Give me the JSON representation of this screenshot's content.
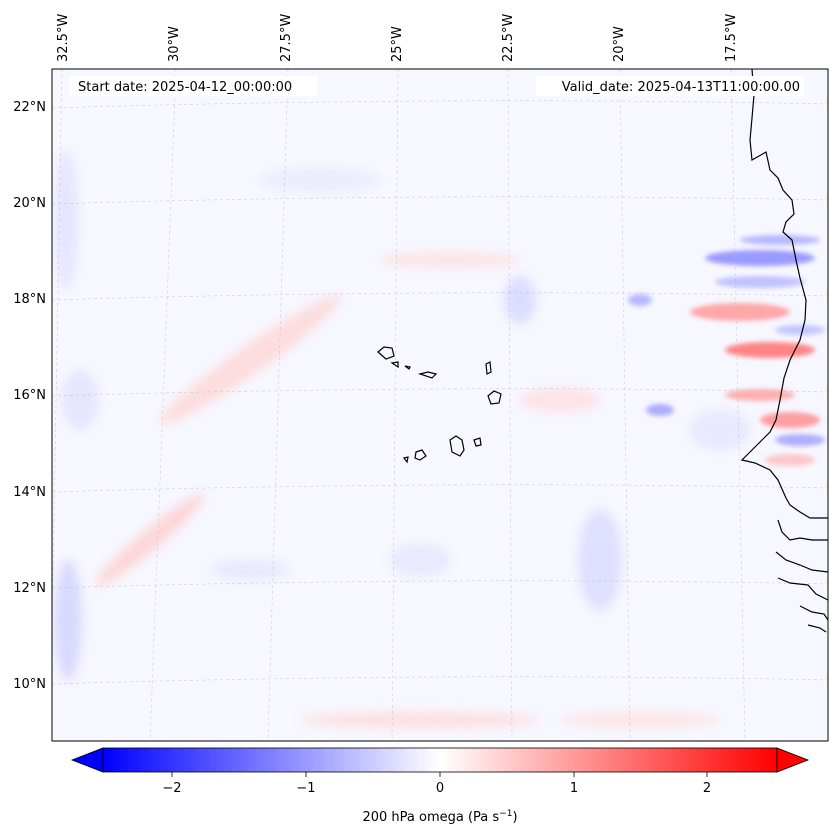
{
  "map": {
    "start_date": "Start date: 2025-04-12_00:00:00",
    "valid_date": "Valid_date: 2025-04-13T11:00:00.00",
    "lon_labels": [
      "32.5°W",
      "30°W",
      "27.5°W",
      "25°W",
      "22.5°W",
      "20°W",
      "17.5°W"
    ],
    "lat_labels": [
      "22°N",
      "20°N",
      "18°N",
      "16°N",
      "14°N",
      "12°N",
      "10°N"
    ],
    "colorbar": {
      "label": "200 hPa omega (Pa s",
      "label_sup": "−1",
      "label_end": ")",
      "ticks": [
        "−2",
        "−1",
        "0",
        "1",
        "2"
      ],
      "range": [
        -2.6,
        2.6
      ],
      "cmap": "bwr",
      "extend": "both"
    },
    "colors": {
      "negative": "#0000ff",
      "positive": "#ff0000",
      "neutral": "#ffffff",
      "coastline": "#000000"
    }
  }
}
